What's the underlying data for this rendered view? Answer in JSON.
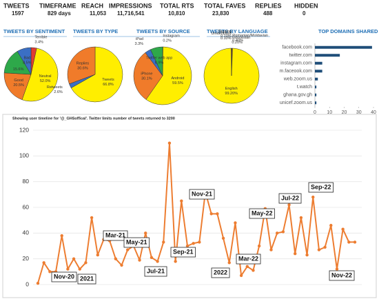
{
  "stats": [
    {
      "label": "TWEETS",
      "value": "1597"
    },
    {
      "label": "TIMEFRAME",
      "value": "829 days"
    },
    {
      "label": "REACH",
      "value": "11,053"
    },
    {
      "label": "IMPRESSIONS",
      "value": "11,716,541"
    },
    {
      "label": "TOTAL RTS",
      "value": "10,810"
    },
    {
      "label": "TOTAL FAVES",
      "value": "23,830"
    },
    {
      "label": "REPLIES",
      "value": "488"
    },
    {
      "label": "HIDDEN",
      "value": "0"
    }
  ],
  "chart_data": [
    {
      "type": "pie",
      "title": "TWEETS BY SENTIMENT",
      "categories": [
        "Terrible",
        "Neutral",
        "Good",
        null,
        "Bad"
      ],
      "values": [
        3.4,
        52.0,
        20.5,
        15.6,
        8.5
      ],
      "value_labels": [
        "3.4%",
        "52.0%",
        "20.5%",
        "15.6%",
        "8.5%"
      ],
      "colors": [
        "#e03c31",
        "#ffee00",
        "#f07b2a",
        "#2ea84a",
        "#3b6fc4"
      ]
    },
    {
      "type": "pie",
      "title": "TWEETS BY TYPE",
      "categories": [
        "Tweets",
        "Retweets",
        "Replies"
      ],
      "values": [
        66.8,
        2.6,
        30.6
      ],
      "value_labels": [
        "66.8%",
        "2.6%",
        "30.6%"
      ],
      "colors": [
        "#ffee00",
        "#3b6fc4",
        "#f07b2a"
      ]
    },
    {
      "type": "pie",
      "title": "TWEETS BY SOURCE",
      "categories": [
        "Instagram",
        "Android",
        "iPhone",
        "iPad",
        "Twitter web app"
      ],
      "values": [
        0.2,
        59.5,
        30.1,
        3.3,
        6.9
      ],
      "value_labels": [
        "0.2%",
        "59.5%",
        "30.1%",
        "3.3%",
        "6.9%"
      ],
      "colors": [
        "#7fb2e5",
        "#ffee00",
        "#f07b2a",
        "#3b6fc4",
        "#2ea84a"
      ]
    },
    {
      "type": "pie",
      "title": "TWEETS BY LANGUAGE",
      "categories": [
        "Indonesian",
        "Romanian/Moldavian",
        "English",
        "Unidentified",
        "Tagalog"
      ],
      "values": [
        0.2,
        0.4,
        99.2,
        0.1,
        0.1
      ],
      "value_labels": [
        "0.20%",
        "0.40%",
        "99.20%",
        "0.10%",
        "0.10%"
      ],
      "colors": [
        "#3b6fc4",
        "#f07b2a",
        "#ffee00",
        "#2ea84a",
        "#e03c31"
      ]
    },
    {
      "type": "hbar",
      "title": "TOP DOMAINS SHARED",
      "categories": [
        "facebook.com",
        "twitter.com",
        "instagram.com",
        "m.faceook.com",
        "web.zoom.us",
        "t.watch",
        "ghana.gov.gh",
        "unicef.zoom.us"
      ],
      "values": [
        39,
        17,
        5,
        5,
        2,
        1,
        1,
        1
      ],
      "color": "#1f4e79",
      "xlim": [
        0,
        40
      ],
      "xticks": [
        0,
        10,
        20,
        30,
        40
      ]
    },
    {
      "type": "line",
      "title": "Showing user timeline for '@_GHSoffical'. Twitter limits number of tweets returned to 3200",
      "values": [
        1,
        17,
        10,
        10,
        38,
        12,
        20,
        12,
        17,
        52,
        23,
        35,
        34,
        20,
        15,
        27,
        30,
        19,
        40,
        21,
        18,
        33,
        110,
        18,
        65,
        30,
        32,
        33,
        72,
        55,
        55,
        36,
        17,
        48,
        7,
        14,
        11,
        30,
        59,
        27,
        40,
        41,
        62,
        24,
        52,
        23,
        68,
        27,
        29,
        46,
        12,
        43,
        33,
        33
      ],
      "color": "#ed7d31",
      "ylim": [
        0,
        120
      ],
      "yticks": [
        0,
        20,
        40,
        60,
        80,
        100,
        120
      ],
      "grid": true,
      "annotations": [
        "Nov-20",
        "2021",
        "Mar-21",
        "May-21",
        "Jul-21",
        "Sep-21",
        "Nov-21",
        "2022",
        "Mar-22",
        "May-22",
        "Jul-22",
        "Sep-22",
        "Nov-22"
      ]
    }
  ]
}
